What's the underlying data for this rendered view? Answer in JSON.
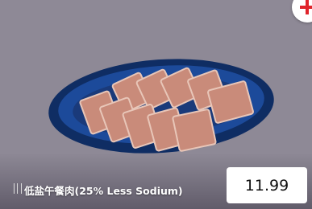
{
  "item": {
    "name": "低盐午餐肉(25% Less Sodium)",
    "price": 11.99
  }
}
